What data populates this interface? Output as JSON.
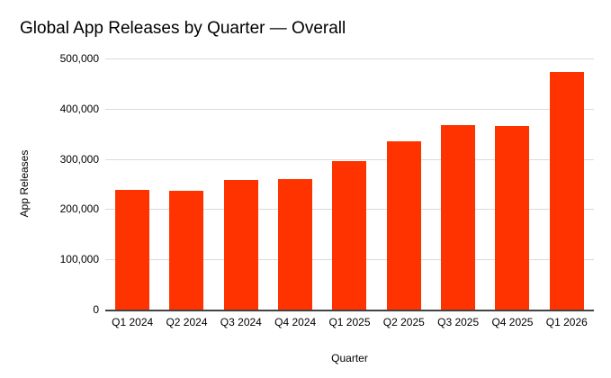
{
  "chart_data": {
    "type": "bar",
    "title": "Global App Releases by Quarter — Overall",
    "xlabel": "Quarter",
    "ylabel": "App Releases",
    "categories": [
      "Q1 2024",
      "Q2 2024",
      "Q3 2024",
      "Q4 2024",
      "Q1 2025",
      "Q2 2025",
      "Q3 2025",
      "Q4 2025",
      "Q1 2026"
    ],
    "values": [
      239000,
      237000,
      258000,
      259000,
      296000,
      335000,
      368000,
      365000,
      473000
    ],
    "ylim": [
      0,
      500000
    ],
    "yticks": [
      {
        "value": 0,
        "label": "0"
      },
      {
        "value": 100000,
        "label": "100,000"
      },
      {
        "value": 200000,
        "label": "200,000"
      },
      {
        "value": 300000,
        "label": "300,000"
      },
      {
        "value": 400000,
        "label": "400,000"
      },
      {
        "value": 500000,
        "label": "500,000"
      }
    ],
    "grid": true,
    "legend": "none"
  },
  "colors": {
    "bar": "#FF3300",
    "gridline": "#DADADA",
    "axis_line": "#424242",
    "text": "#000000",
    "background": "#FFFFFF"
  }
}
